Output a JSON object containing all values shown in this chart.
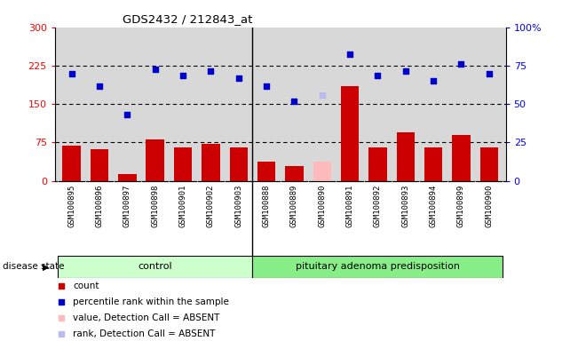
{
  "title": "GDS2432 / 212843_at",
  "samples": [
    "GSM100895",
    "GSM100896",
    "GSM100897",
    "GSM100898",
    "GSM100901",
    "GSM100902",
    "GSM100903",
    "GSM100888",
    "GSM100889",
    "GSM100890",
    "GSM100891",
    "GSM100892",
    "GSM100893",
    "GSM100894",
    "GSM100899",
    "GSM100900"
  ],
  "bar_values": [
    68,
    62,
    13,
    80,
    65,
    72,
    65,
    38,
    28,
    37,
    185,
    65,
    95,
    65,
    90,
    65
  ],
  "bar_colors": [
    "#cc0000",
    "#cc0000",
    "#cc0000",
    "#cc0000",
    "#cc0000",
    "#cc0000",
    "#cc0000",
    "#cc0000",
    "#cc0000",
    "#ffbbbb",
    "#cc0000",
    "#cc0000",
    "#cc0000",
    "#cc0000",
    "#cc0000",
    "#cc0000"
  ],
  "dot_values": [
    210,
    185,
    130,
    218,
    205,
    215,
    200,
    185,
    155,
    168,
    248,
    205,
    215,
    195,
    228,
    210
  ],
  "dot_colors": [
    "#0000cc",
    "#0000cc",
    "#0000cc",
    "#0000cc",
    "#0000cc",
    "#0000cc",
    "#0000cc",
    "#0000cc",
    "#0000cc",
    "#bbbbee",
    "#0000cc",
    "#0000cc",
    "#0000cc",
    "#0000cc",
    "#0000cc",
    "#0000cc"
  ],
  "control_count": 7,
  "ylim_left": [
    0,
    300
  ],
  "ylim_right": [
    0,
    100
  ],
  "yticks_left": [
    0,
    75,
    150,
    225,
    300
  ],
  "yticks_right": [
    0,
    25,
    50,
    75,
    100
  ],
  "ytick_labels_right": [
    "0",
    "25",
    "50",
    "75",
    "100%"
  ],
  "hlines": [
    75,
    150,
    225
  ],
  "disease_label_control": "control",
  "disease_label_pituitary": "pituitary adenoma predisposition",
  "disease_state_label": "disease state",
  "legend_items": [
    {
      "label": "count",
      "color": "#cc0000"
    },
    {
      "label": "percentile rank within the sample",
      "color": "#0000cc"
    },
    {
      "label": "value, Detection Call = ABSENT",
      "color": "#ffbbbb"
    },
    {
      "label": "rank, Detection Call = ABSENT",
      "color": "#bbbbee"
    }
  ],
  "plot_bg": "#d8d8d8",
  "control_bg": "#ccffcc",
  "pituitary_bg": "#88ee88",
  "xtick_gray_bg": "#c8c8c8"
}
